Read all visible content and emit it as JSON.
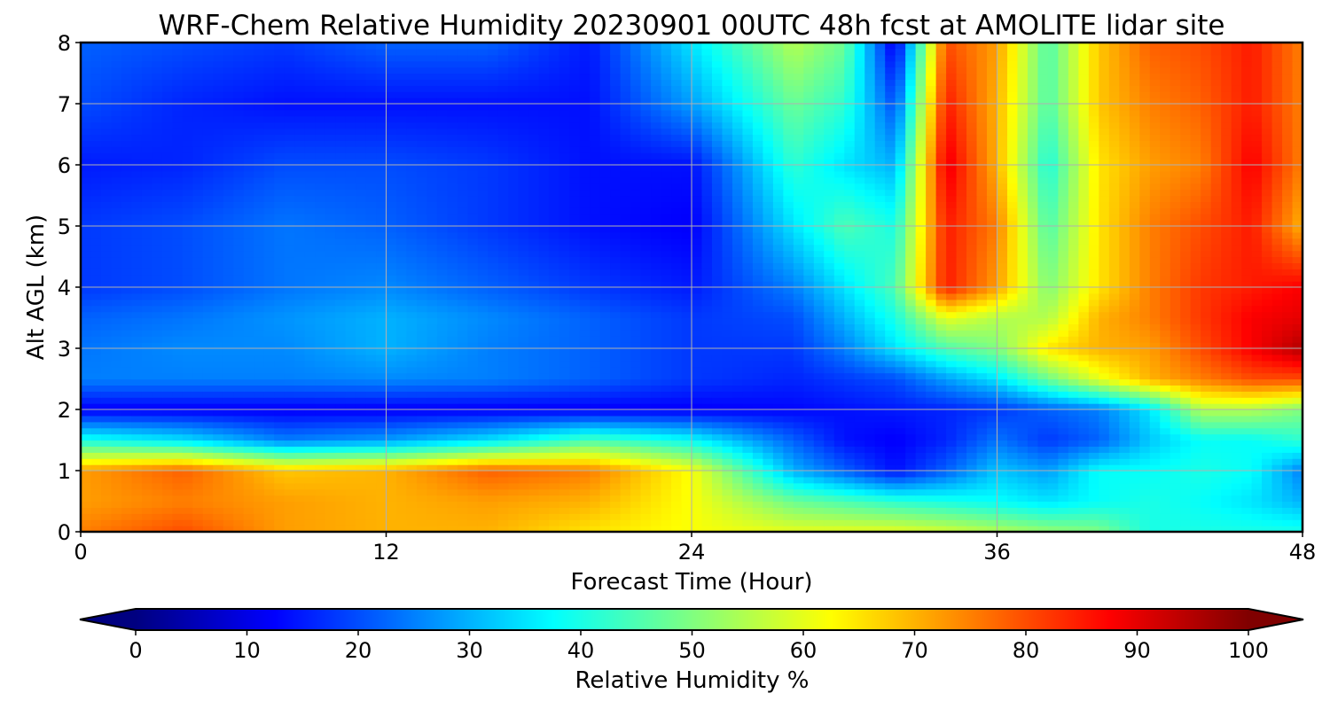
{
  "chart_data": {
    "type": "heatmap",
    "title": "WRF-Chem Relative Humidity 20230901 00UTC 48h fcst at AMOLITE lidar site",
    "xlabel": "Forecast Time (Hour)",
    "ylabel": "Alt AGL (km)",
    "xlim": [
      0,
      48
    ],
    "ylim": [
      0,
      8
    ],
    "xticks": [
      "0",
      "12",
      "24",
      "36",
      "48"
    ],
    "yticks": [
      "0",
      "1",
      "2",
      "3",
      "4",
      "5",
      "6",
      "7",
      "8"
    ],
    "grid": true,
    "colorbar": {
      "label": "Relative Humidity %",
      "colormap": "jet",
      "range": [
        0,
        100
      ],
      "extend": "both",
      "ticks": [
        "0",
        "10",
        "20",
        "30",
        "40",
        "50",
        "60",
        "70",
        "80",
        "90",
        "100"
      ],
      "placement": "bottom"
    },
    "x": [
      0,
      4,
      8,
      12,
      16,
      20,
      24,
      28,
      30,
      32,
      34,
      36,
      38,
      40,
      42,
      44,
      46,
      48
    ],
    "y": [
      0,
      0.5,
      1,
      1.5,
      2,
      2.5,
      3,
      3.5,
      4,
      5,
      6,
      7,
      8
    ],
    "z": [
      [
        75,
        80,
        72,
        70,
        70,
        65,
        62,
        60,
        60,
        60,
        58,
        55,
        52,
        50,
        40,
        40,
        40,
        40
      ],
      [
        72,
        75,
        72,
        70,
        72,
        70,
        62,
        48,
        45,
        42,
        40,
        38,
        35,
        38,
        40,
        38,
        35,
        30
      ],
      [
        72,
        78,
        68,
        70,
        78,
        75,
        62,
        30,
        22,
        14,
        22,
        32,
        28,
        38,
        38,
        40,
        38,
        25
      ],
      [
        40,
        35,
        25,
        28,
        35,
        45,
        38,
        22,
        14,
        12,
        16,
        24,
        18,
        22,
        32,
        38,
        38,
        42
      ],
      [
        12,
        12,
        12,
        12,
        12,
        12,
        12,
        13,
        14,
        15,
        16,
        18,
        22,
        25,
        35,
        55,
        55,
        50
      ],
      [
        25,
        25,
        25,
        26,
        25,
        22,
        18,
        16,
        18,
        20,
        28,
        35,
        48,
        60,
        70,
        75,
        80,
        80
      ],
      [
        24,
        26,
        26,
        30,
        25,
        22,
        18,
        18,
        25,
        35,
        45,
        50,
        65,
        70,
        72,
        80,
        88,
        95
      ],
      [
        22,
        24,
        27,
        30,
        26,
        22,
        18,
        20,
        30,
        40,
        60,
        55,
        55,
        70,
        75,
        82,
        88,
        90
      ],
      [
        18,
        20,
        24,
        26,
        22,
        18,
        15,
        25,
        35,
        45,
        85,
        72,
        50,
        65,
        75,
        82,
        85,
        88
      ],
      [
        18,
        20,
        24,
        22,
        18,
        14,
        12,
        35,
        45,
        40,
        85,
        75,
        45,
        65,
        75,
        80,
        85,
        70
      ],
      [
        15,
        16,
        20,
        20,
        18,
        14,
        14,
        42,
        35,
        30,
        90,
        70,
        40,
        65,
        72,
        75,
        88,
        75
      ],
      [
        20,
        16,
        14,
        14,
        14,
        14,
        28,
        48,
        42,
        20,
        85,
        70,
        45,
        68,
        75,
        78,
        85,
        75
      ],
      [
        22,
        20,
        18,
        22,
        22,
        15,
        35,
        55,
        48,
        10,
        80,
        72,
        45,
        68,
        78,
        80,
        85,
        75
      ]
    ]
  }
}
